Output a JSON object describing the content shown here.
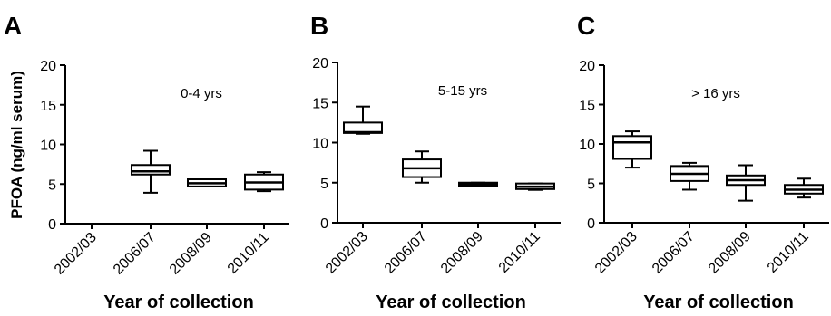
{
  "chart_data": [
    {
      "type": "box",
      "panel_letter": "A",
      "annotation": "0-4 yrs",
      "ylabel": "PFOA (ng/ml serum)",
      "xlabel": "Year of collection",
      "ylim": [
        0,
        20
      ],
      "yticks": [
        0,
        5,
        10,
        15,
        20
      ],
      "categories": [
        "2002/03",
        "2006/07",
        "2008/09",
        "2010/11"
      ],
      "boxes": [
        null,
        {
          "min": 3.9,
          "q1": 6.2,
          "median": 6.6,
          "q3": 7.4,
          "max": 9.2
        },
        {
          "min": 4.7,
          "q1": 4.7,
          "median": 5.1,
          "q3": 5.6,
          "max": 5.6
        },
        {
          "min": 4.1,
          "q1": 4.3,
          "median": 5.2,
          "q3": 6.2,
          "max": 6.5
        }
      ]
    },
    {
      "type": "box",
      "panel_letter": "B",
      "annotation": "5-15 yrs",
      "ylabel": "",
      "xlabel": "Year of collection",
      "ylim": [
        0,
        20
      ],
      "yticks": [
        0,
        5,
        10,
        15,
        20
      ],
      "categories": [
        "2002/03",
        "2006/07",
        "2008/09",
        "2010/11"
      ],
      "boxes": [
        {
          "min": 11.1,
          "q1": 11.2,
          "median": 11.3,
          "q3": 12.5,
          "max": 14.5
        },
        {
          "min": 5.0,
          "q1": 5.7,
          "median": 6.8,
          "q3": 7.9,
          "max": 8.9
        },
        {
          "min": 4.6,
          "q1": 4.6,
          "median": 4.8,
          "q3": 5.0,
          "max": 5.0
        },
        {
          "min": 4.1,
          "q1": 4.2,
          "median": 4.5,
          "q3": 4.9,
          "max": 4.9
        }
      ]
    },
    {
      "type": "box",
      "panel_letter": "C",
      "annotation": "> 16 yrs",
      "ylabel": "",
      "xlabel": "Year of collection",
      "ylim": [
        0,
        20
      ],
      "yticks": [
        0,
        5,
        10,
        15,
        20
      ],
      "categories": [
        "2002/03",
        "2006/07",
        "2008/09",
        "2010/11"
      ],
      "boxes": [
        {
          "min": 7.0,
          "q1": 8.1,
          "median": 10.2,
          "q3": 11.0,
          "max": 11.6
        },
        {
          "min": 4.2,
          "q1": 5.3,
          "median": 6.2,
          "q3": 7.2,
          "max": 7.6
        },
        {
          "min": 2.8,
          "q1": 4.8,
          "median": 5.4,
          "q3": 6.0,
          "max": 7.3
        },
        {
          "min": 3.2,
          "q1": 3.7,
          "median": 4.2,
          "q3": 4.8,
          "max": 5.6
        }
      ]
    }
  ]
}
